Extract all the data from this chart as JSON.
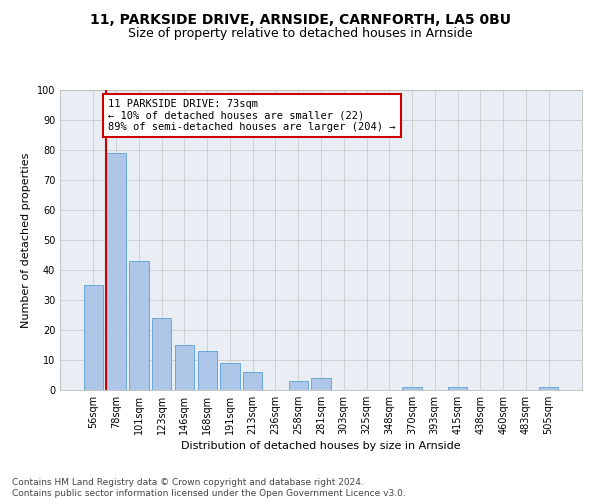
{
  "title": "11, PARKSIDE DRIVE, ARNSIDE, CARNFORTH, LA5 0BU",
  "subtitle": "Size of property relative to detached houses in Arnside",
  "xlabel": "Distribution of detached houses by size in Arnside",
  "ylabel": "Number of detached properties",
  "categories": [
    "56sqm",
    "78sqm",
    "101sqm",
    "123sqm",
    "146sqm",
    "168sqm",
    "191sqm",
    "213sqm",
    "236sqm",
    "258sqm",
    "281sqm",
    "303sqm",
    "325sqm",
    "348sqm",
    "370sqm",
    "393sqm",
    "415sqm",
    "438sqm",
    "460sqm",
    "483sqm",
    "505sqm"
  ],
  "values": [
    35,
    79,
    43,
    24,
    15,
    13,
    9,
    6,
    0,
    3,
    4,
    0,
    0,
    0,
    1,
    0,
    1,
    0,
    0,
    0,
    1
  ],
  "bar_color": "#aec6e8",
  "bar_edge_color": "#5a9fd4",
  "annotation_line_color": "#cc0000",
  "annotation_box_text": "11 PARKSIDE DRIVE: 73sqm\n← 10% of detached houses are smaller (22)\n89% of semi-detached houses are larger (204) →",
  "annotation_box_color": "#ffffff",
  "annotation_box_edge_color": "#cc0000",
  "ylim": [
    0,
    100
  ],
  "yticks": [
    0,
    10,
    20,
    30,
    40,
    50,
    60,
    70,
    80,
    90,
    100
  ],
  "grid_color": "#cccccc",
  "bg_color": "#e8eef4",
  "footnote": "Contains HM Land Registry data © Crown copyright and database right 2024.\nContains public sector information licensed under the Open Government Licence v3.0.",
  "title_fontsize": 10,
  "subtitle_fontsize": 9,
  "label_fontsize": 8,
  "tick_fontsize": 7,
  "annotation_fontsize": 7.5,
  "footnote_fontsize": 6.5
}
